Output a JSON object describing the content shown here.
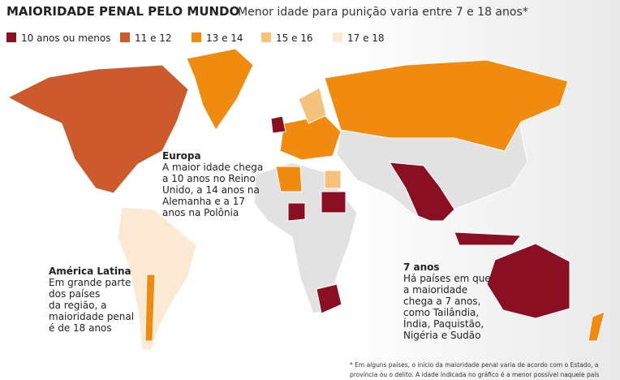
{
  "header": {
    "title": "MAIORIDADE PENAL PELO MUNDO",
    "subtitle": "Menor idade para punição varia entre 7 e 18 anos*"
  },
  "legend": [
    {
      "label": "10 anos ou menos",
      "color": "#8b0f22"
    },
    {
      "label": "11 e 12",
      "color": "#cd5a2c"
    },
    {
      "label": "13 e 14",
      "color": "#f08b0f"
    },
    {
      "label": "15 e 16",
      "color": "#f4c27c"
    },
    {
      "label": "17 e 18",
      "color": "#fbe9d3"
    }
  ],
  "annotations": [
    {
      "title": "Europa",
      "lines": [
        "A maior idade chega",
        "a 10 anos no Reino",
        "Unido, a 14 anos na",
        "Alemanha e a 17",
        "anos na Polônia"
      ]
    },
    {
      "title": "América Latina",
      "lines": [
        "Em grande parte",
        "dos países",
        "da região, a",
        "maioridade penal",
        "é de 18 anos"
      ]
    },
    {
      "title": "7 anos",
      "lines": [
        "Há países em que",
        "a maioridade",
        "chega a 7 anos,",
        "como Tailândia,",
        "Índia, Paquistão,",
        "Nigéria e Sudão"
      ]
    }
  ],
  "footnote": [
    "* Em alguns países, o início da maioridade penal varia de acordo com o Estado, a",
    "província ou o delito. A idade indicada no gráfico é a menor possível naquele país"
  ]
}
